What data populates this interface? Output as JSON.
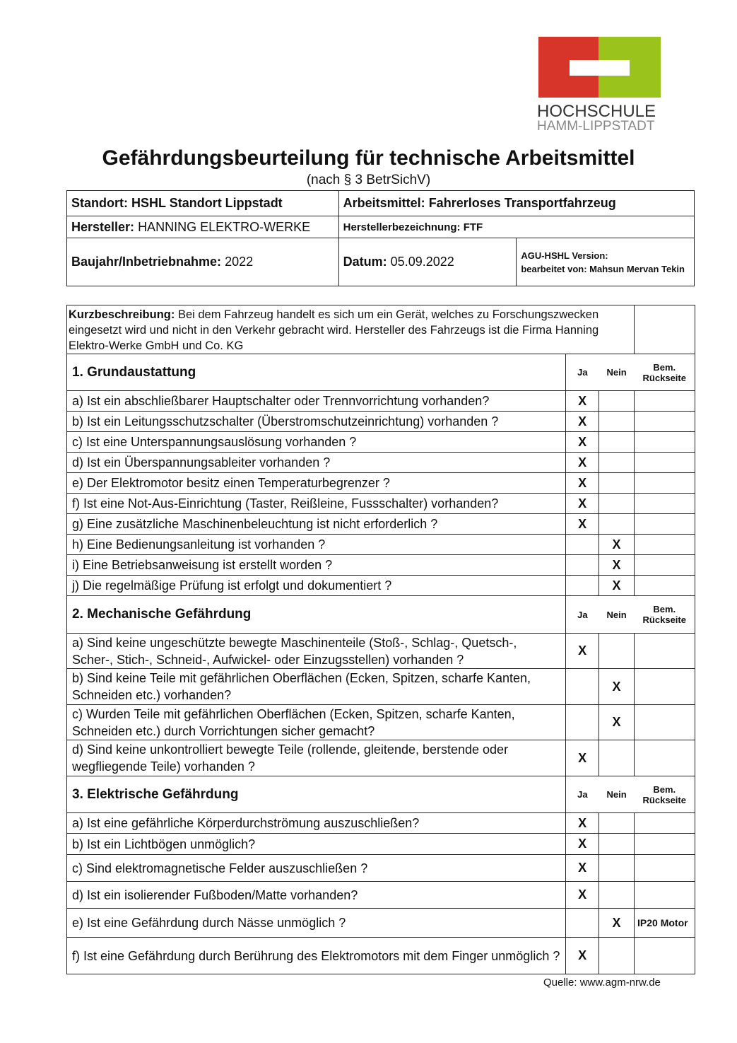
{
  "logo": {
    "line1": "HOCHSCHULE",
    "line2": "HAMM-LIPPSTADT",
    "colors": {
      "red": "#d8352a",
      "green": "#9ac31c"
    }
  },
  "title": "Gefährdungsbeurteilung für technische Arbeitsmittel",
  "subtitle": "(nach § 3 BetrSichV)",
  "header": {
    "standort_label": "Standort:",
    "standort": "HSHL Standort Lippstadt",
    "arbeitsmittel_label": "Arbeitsmittel:",
    "arbeitsmittel": "Fahrerloses Transportfahrzeug",
    "hersteller_label": "Hersteller:",
    "hersteller": "HANNING ELEKTRO-WERKE",
    "herstellerbez_label": "Herstellerbezeichnung:",
    "herstellerbez": "FTF",
    "baujahr_label": "Baujahr/Inbetriebnahme:",
    "baujahr": "2022",
    "datum_label": "Datum:",
    "datum": "05.09.2022",
    "version": "AGU-HSHL Version:",
    "bearbeitet": "bearbeitet von: Mahsun Mervan Tekin"
  },
  "kurz": {
    "label": "Kurzbeschreibung:",
    "text": "Bei dem Fahrzeug handelt es sich um ein Gerät, welches zu Forschungszwecken eingesetzt wird und nicht in den Verkehr gebracht wird. Hersteller des Fahrzeugs ist die Firma Hanning Elektro-Werke GmbH und Co. KG"
  },
  "columns": {
    "ja": "Ja",
    "nein": "Nein",
    "bem": "Bem. Rückseite"
  },
  "sections": [
    {
      "title": "1. Grundaustattung",
      "rows": [
        {
          "q": "a) Ist ein abschließbarer Hauptschalter oder Trennvorrichtung vorhanden?",
          "ja": "X",
          "nein": "",
          "bem": ""
        },
        {
          "q": "b) Ist ein Leitungsschutzschalter (Überstromschutzeinrichtung) vorhanden ?",
          "ja": "X",
          "nein": "",
          "bem": ""
        },
        {
          "q": "c) Ist eine Unterspannungsauslösung vorhanden ?",
          "ja": "X",
          "nein": "",
          "bem": ""
        },
        {
          "q": "d) Ist ein Überspannungsableiter vorhanden ?",
          "ja": "X",
          "nein": "",
          "bem": ""
        },
        {
          "q": "e) Der Elektromotor besitz einen Temperaturbegrenzer ?",
          "ja": "X",
          "nein": "",
          "bem": ""
        },
        {
          "q": "f) Ist eine Not-Aus-Einrichtung (Taster, Reißleine, Fussschalter) vorhanden?",
          "ja": "X",
          "nein": "",
          "bem": ""
        },
        {
          "q": "g) Eine zusätzliche Maschinenbeleuchtung ist nicht erforderlich ?",
          "ja": "X",
          "nein": "",
          "bem": ""
        },
        {
          "q": "h) Eine Bedienungsanleitung ist vorhanden ?",
          "ja": "",
          "nein": "X",
          "bem": ""
        },
        {
          "q": "i) Eine Betriebsanweisung ist erstellt worden ?",
          "ja": "",
          "nein": "X",
          "bem": ""
        },
        {
          "q": "j) Die regelmäßige Prüfung ist erfolgt und dokumentiert ?",
          "ja": "",
          "nein": "X",
          "bem": ""
        }
      ]
    },
    {
      "title": "2. Mechanische Gefährdung",
      "rows": [
        {
          "q": "a) Sind keine ungeschützte bewegte Maschinenteile (Stoß-, Schlag-, Quetsch-, Scher-, Stich-, Schneid-, Aufwickel- oder Einzugsstellen) vorhanden ?",
          "ja": "X",
          "nein": "",
          "bem": ""
        },
        {
          "q": "b) Sind keine Teile mit gefährlichen Oberflächen (Ecken, Spitzen, scharfe Kanten, Schneiden etc.) vorhanden?",
          "ja": "",
          "nein": "X",
          "bem": ""
        },
        {
          "q": "c) Wurden Teile mit gefährlichen Oberflächen (Ecken, Spitzen, scharfe Kanten, Schneiden etc.) durch Vorrichtungen sicher gemacht?",
          "ja": "",
          "nein": "X",
          "bem": ""
        },
        {
          "q": "d) Sind keine unkontrolliert bewegte Teile (rollende, gleitende, berstende oder wegfliegende Teile) vorhanden ?",
          "ja": "X",
          "nein": "",
          "bem": ""
        }
      ]
    },
    {
      "title": "3. Elektrische Gefährdung",
      "rows": [
        {
          "q": "a) Ist eine gefährliche Körperdurchströmung auszuschließen?",
          "ja": "X",
          "nein": "",
          "bem": ""
        },
        {
          "q": "b) Ist ein Lichtbögen unmöglich?",
          "ja": "X",
          "nein": "",
          "bem": ""
        },
        {
          "q": "c) Sind elektromagnetische Felder auszuschließen ?",
          "ja": "X",
          "nein": "",
          "bem": ""
        },
        {
          "q": "d) Ist ein isolierender Fußboden/Matte vorhanden?",
          "ja": "X",
          "nein": "",
          "bem": ""
        },
        {
          "q": "e) Ist eine Gefährdung durch Nässe unmöglich ?",
          "ja": "",
          "nein": "X",
          "bem": "IP20 Motor"
        },
        {
          "q": "f) Ist eine Gefährdung durch Berührung des Elektromotors mit dem Finger unmöglich ?",
          "ja": "X",
          "nein": "",
          "bem": ""
        }
      ]
    }
  ],
  "source": "Quelle: www.agm-nrw.de"
}
